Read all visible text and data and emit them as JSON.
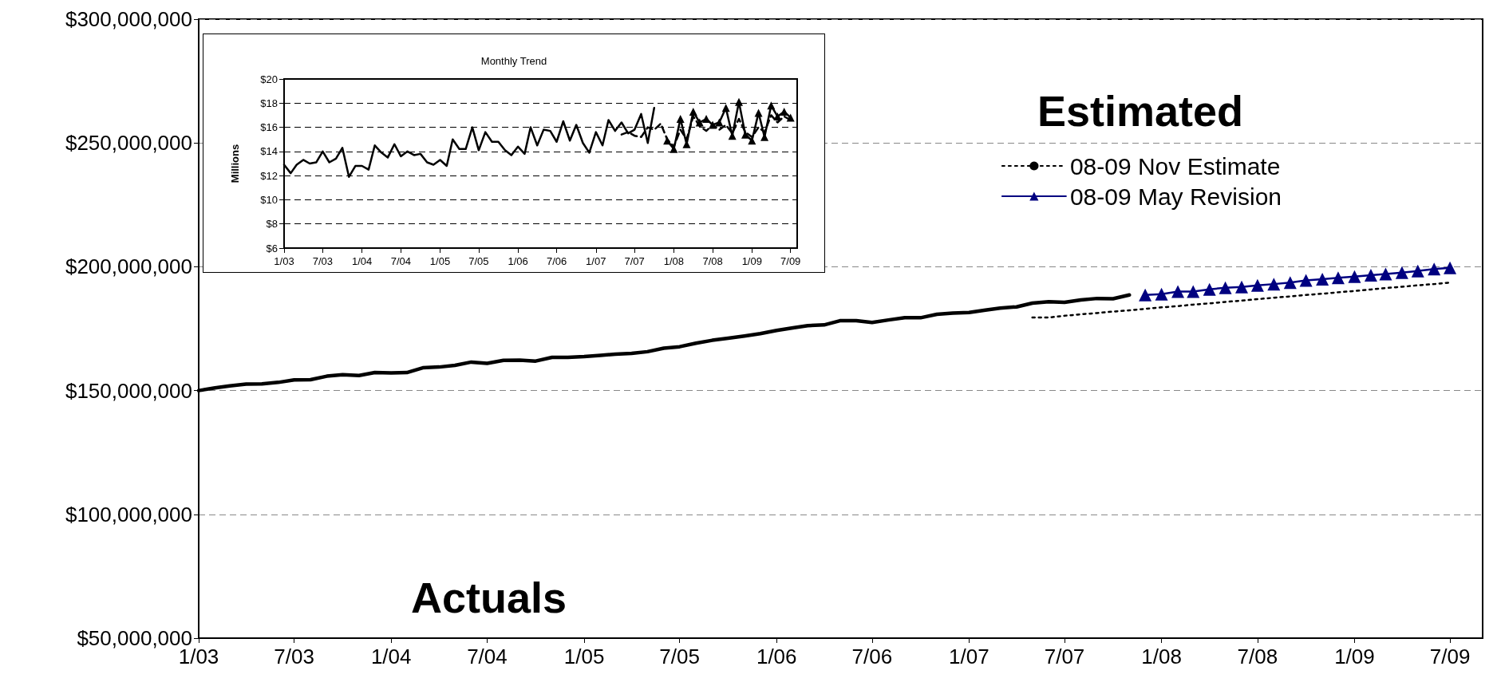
{
  "chart_data": [
    {
      "type": "line",
      "legend_title": "Estimated",
      "annotations": [
        "Actuals"
      ],
      "grid": "y",
      "legend": "top right",
      "x": [
        "2003-01",
        "2003-02",
        "2003-03",
        "2003-04",
        "2003-05",
        "2003-06",
        "2003-07",
        "2003-08",
        "2003-09",
        "2003-10",
        "2003-11",
        "2003-12",
        "2004-01",
        "2004-02",
        "2004-03",
        "2004-04",
        "2004-05",
        "2004-06",
        "2004-07",
        "2004-08",
        "2004-09",
        "2004-10",
        "2004-11",
        "2004-12",
        "2005-01",
        "2005-02",
        "2005-03",
        "2005-04",
        "2005-05",
        "2005-06",
        "2005-07",
        "2005-08",
        "2005-09",
        "2005-10",
        "2005-11",
        "2005-12",
        "2006-01",
        "2006-02",
        "2006-03",
        "2006-04",
        "2006-05",
        "2006-06",
        "2006-07",
        "2006-08",
        "2006-09",
        "2006-10",
        "2006-11",
        "2006-12",
        "2007-01",
        "2007-02",
        "2007-03",
        "2007-04",
        "2007-05",
        "2007-06",
        "2007-07",
        "2007-08",
        "2007-09",
        "2007-10",
        "2007-11",
        "2007-12",
        "2008-01",
        "2008-02",
        "2008-03",
        "2008-04",
        "2008-05",
        "2008-06",
        "2008-07",
        "2008-08",
        "2008-09",
        "2008-10",
        "2008-11",
        "2008-12",
        "2009-01",
        "2009-02",
        "2009-03",
        "2009-04",
        "2009-05",
        "2009-06",
        "2009-07"
      ],
      "xlim": [
        "2003-01",
        "2009-09"
      ],
      "xticks": [
        {
          "value": "2003-01",
          "label": "1/03"
        },
        {
          "value": "2003-07",
          "label": "7/03"
        },
        {
          "value": "2004-01",
          "label": "1/04"
        },
        {
          "value": "2004-07",
          "label": "7/04"
        },
        {
          "value": "2005-01",
          "label": "1/05"
        },
        {
          "value": "2005-07",
          "label": "7/05"
        },
        {
          "value": "2006-01",
          "label": "1/06"
        },
        {
          "value": "2006-07",
          "label": "7/06"
        },
        {
          "value": "2007-01",
          "label": "1/07"
        },
        {
          "value": "2007-07",
          "label": "7/07"
        },
        {
          "value": "2008-01",
          "label": "1/08"
        },
        {
          "value": "2008-07",
          "label": "7/08"
        },
        {
          "value": "2009-01",
          "label": "1/09"
        },
        {
          "value": "2009-07",
          "label": "7/09"
        }
      ],
      "ylim": [
        50000000,
        300000000
      ],
      "yticks": [
        {
          "value": 50000000,
          "label": "$50,000,000"
        },
        {
          "value": 100000000,
          "label": "$100,000,000"
        },
        {
          "value": 150000000,
          "label": "$150,000,000"
        },
        {
          "value": 200000000,
          "label": "$200,000,000"
        },
        {
          "value": 250000000,
          "label": "$250,000,000"
        },
        {
          "value": 300000000,
          "label": "$300,000,000"
        }
      ],
      "series": [
        {
          "color": "#000000",
          "line_style": "solid",
          "marker": "none",
          "values": [
            150000000,
            151100000,
            151900000,
            152600000,
            152700000,
            153300000,
            154300000,
            154400000,
            155800000,
            156400000,
            156100000,
            157300000,
            157100000,
            157300000,
            159200000,
            159500000,
            160200000,
            161500000,
            161000000,
            162200000,
            162300000,
            161900000,
            163400000,
            163400000,
            163700000,
            164200000,
            164700000,
            165000000,
            165700000,
            167100000,
            167700000,
            169100000,
            170300000,
            171100000,
            172000000,
            173000000,
            174300000,
            175300000,
            176200000,
            176500000,
            178200000,
            178200000,
            177500000,
            178500000,
            179400000,
            179400000,
            180800000,
            181300000,
            181500000,
            182500000,
            183300000,
            183800000,
            185300000,
            185900000,
            185600000,
            186600000,
            187200000,
            187100000,
            188600000,
            null,
            null,
            null,
            null,
            null,
            null,
            null,
            null,
            null,
            null,
            null,
            null,
            null,
            null,
            null,
            null,
            null,
            null,
            null,
            null
          ]
        },
        {
          "name": "08-09 Nov Estimate",
          "color": "#000000",
          "line_style": "dotted",
          "marker": "none",
          "values": [
            null,
            null,
            null,
            null,
            null,
            null,
            null,
            null,
            null,
            null,
            null,
            null,
            null,
            null,
            null,
            null,
            null,
            null,
            null,
            null,
            null,
            null,
            null,
            null,
            null,
            null,
            null,
            null,
            null,
            null,
            null,
            null,
            null,
            null,
            null,
            null,
            null,
            null,
            null,
            null,
            null,
            null,
            null,
            null,
            null,
            null,
            null,
            null,
            null,
            null,
            null,
            null,
            179500000,
            179500000,
            180200000,
            180800000,
            181300000,
            181900000,
            182400000,
            183000000,
            183600000,
            184100000,
            184700000,
            185200000,
            185800000,
            186300000,
            186900000,
            187500000,
            188000000,
            188600000,
            189100000,
            189700000,
            190200000,
            190800000,
            191400000,
            191900000,
            192500000,
            193000000,
            193600000
          ]
        },
        {
          "name": "08-09 May Revision",
          "color": "#000080",
          "line_style": "solid",
          "marker": "triangle",
          "values": [
            null,
            null,
            null,
            null,
            null,
            null,
            null,
            null,
            null,
            null,
            null,
            null,
            null,
            null,
            null,
            null,
            null,
            null,
            null,
            null,
            null,
            null,
            null,
            null,
            null,
            null,
            null,
            null,
            null,
            null,
            null,
            null,
            null,
            null,
            null,
            null,
            null,
            null,
            null,
            null,
            null,
            null,
            null,
            null,
            null,
            null,
            null,
            null,
            null,
            null,
            null,
            null,
            null,
            null,
            null,
            null,
            null,
            null,
            null,
            188600000,
            188900000,
            190000000,
            190000000,
            190900000,
            191500000,
            191800000,
            192500000,
            193000000,
            193600000,
            194500000,
            195000000,
            195500000,
            196000000,
            196600000,
            197100000,
            197600000,
            198300000,
            199100000,
            199600000
          ]
        }
      ]
    },
    {
      "type": "line",
      "title": "Monthly Trend",
      "ylabel": "Millions",
      "grid": "y",
      "x": [
        "2003-01",
        "2003-02",
        "2003-03",
        "2003-04",
        "2003-05",
        "2003-06",
        "2003-07",
        "2003-08",
        "2003-09",
        "2003-10",
        "2003-11",
        "2003-12",
        "2004-01",
        "2004-02",
        "2004-03",
        "2004-04",
        "2004-05",
        "2004-06",
        "2004-07",
        "2004-08",
        "2004-09",
        "2004-10",
        "2004-11",
        "2004-12",
        "2005-01",
        "2005-02",
        "2005-03",
        "2005-04",
        "2005-05",
        "2005-06",
        "2005-07",
        "2005-08",
        "2005-09",
        "2005-10",
        "2005-11",
        "2005-12",
        "2006-01",
        "2006-02",
        "2006-03",
        "2006-04",
        "2006-05",
        "2006-06",
        "2006-07",
        "2006-08",
        "2006-09",
        "2006-10",
        "2006-11",
        "2006-12",
        "2007-01",
        "2007-02",
        "2007-03",
        "2007-04",
        "2007-05",
        "2007-06",
        "2007-07",
        "2007-08",
        "2007-09",
        "2007-10",
        "2007-11",
        "2007-12",
        "2008-01",
        "2008-02",
        "2008-03",
        "2008-04",
        "2008-05",
        "2008-06",
        "2008-07",
        "2008-08",
        "2008-09",
        "2008-10",
        "2008-11",
        "2008-12",
        "2009-01",
        "2009-02",
        "2009-03",
        "2009-04",
        "2009-05",
        "2009-06",
        "2009-07"
      ],
      "xlim": [
        "2003-01",
        "2009-08"
      ],
      "xticks": [
        {
          "value": "2003-01",
          "label": "1/03"
        },
        {
          "value": "2003-07",
          "label": "7/03"
        },
        {
          "value": "2004-01",
          "label": "1/04"
        },
        {
          "value": "2004-07",
          "label": "7/04"
        },
        {
          "value": "2005-01",
          "label": "1/05"
        },
        {
          "value": "2005-07",
          "label": "7/05"
        },
        {
          "value": "2006-01",
          "label": "1/06"
        },
        {
          "value": "2006-07",
          "label": "7/06"
        },
        {
          "value": "2007-01",
          "label": "1/07"
        },
        {
          "value": "2007-07",
          "label": "7/07"
        },
        {
          "value": "2008-01",
          "label": "1/08"
        },
        {
          "value": "2008-07",
          "label": "7/08"
        },
        {
          "value": "2009-01",
          "label": "1/09"
        },
        {
          "value": "2009-07",
          "label": "7/09"
        }
      ],
      "ylim": [
        6,
        20
      ],
      "yticks": [
        {
          "value": 6,
          "label": "$6"
        },
        {
          "value": 8,
          "label": "$8"
        },
        {
          "value": 10,
          "label": "$10"
        },
        {
          "value": 12,
          "label": "$12"
        },
        {
          "value": 14,
          "label": "$14"
        },
        {
          "value": 16,
          "label": "$16"
        },
        {
          "value": 18,
          "label": "$18"
        },
        {
          "value": 20,
          "label": "$20"
        }
      ],
      "series": [
        {
          "color": "#000000",
          "line_style": "solid",
          "marker": "none",
          "values": [
            12.9,
            12.2,
            12.9,
            13.3,
            13.0,
            13.1,
            14.0,
            13.1,
            13.4,
            14.3,
            11.9,
            12.8,
            12.8,
            12.5,
            14.5,
            13.9,
            13.5,
            14.6,
            13.6,
            14.0,
            13.7,
            13.8,
            13.1,
            12.9,
            13.3,
            12.8,
            15.0,
            14.2,
            14.2,
            16.0,
            14.1,
            15.6,
            14.8,
            14.8,
            14.1,
            13.7,
            14.4,
            13.8,
            16.0,
            14.5,
            15.8,
            15.7,
            14.8,
            16.5,
            14.9,
            16.2,
            14.7,
            13.9,
            15.6,
            14.5,
            16.6,
            15.7,
            16.4,
            15.5,
            15.8,
            17.1,
            14.7,
            17.6,
            null,
            null,
            null,
            null,
            null,
            null,
            null,
            null,
            null,
            null,
            null,
            null,
            null,
            null,
            null,
            null,
            null,
            null,
            null,
            null,
            null
          ]
        },
        {
          "color": "#000000",
          "line_style": "dashed",
          "marker": "none",
          "values": [
            null,
            null,
            null,
            null,
            null,
            null,
            null,
            null,
            null,
            null,
            null,
            null,
            null,
            null,
            null,
            null,
            null,
            null,
            null,
            null,
            null,
            null,
            null,
            null,
            null,
            null,
            null,
            null,
            null,
            null,
            null,
            null,
            null,
            null,
            null,
            null,
            null,
            null,
            null,
            null,
            null,
            null,
            null,
            null,
            null,
            null,
            null,
            null,
            null,
            null,
            null,
            null,
            15.4,
            15.6,
            15.3,
            15.2,
            16.0,
            15.8,
            16.3,
            15.0,
            14.4,
            15.8,
            15.0,
            16.9,
            16.1,
            15.7,
            16.2,
            15.8,
            16.2,
            15.5,
            16.7,
            15.6,
            15.2,
            16.0,
            15.6,
            17.0,
            16.4,
            16.9,
            16.6
          ]
        },
        {
          "color": "#000000",
          "line_style": "solid",
          "marker": "triangle",
          "values": [
            null,
            null,
            null,
            null,
            null,
            null,
            null,
            null,
            null,
            null,
            null,
            null,
            null,
            null,
            null,
            null,
            null,
            null,
            null,
            null,
            null,
            null,
            null,
            null,
            null,
            null,
            null,
            null,
            null,
            null,
            null,
            null,
            null,
            null,
            null,
            null,
            null,
            null,
            null,
            null,
            null,
            null,
            null,
            null,
            null,
            null,
            null,
            null,
            null,
            null,
            null,
            null,
            null,
            null,
            null,
            null,
            null,
            null,
            null,
            14.9,
            14.2,
            16.7,
            14.6,
            17.3,
            16.4,
            16.7,
            16.2,
            16.4,
            17.6,
            15.3,
            18.1,
            15.4,
            14.9,
            17.2,
            15.2,
            17.8,
            16.9,
            17.3,
            16.8
          ]
        }
      ]
    }
  ]
}
